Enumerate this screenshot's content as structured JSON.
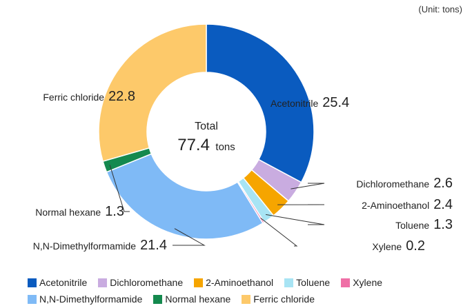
{
  "unit_label": "(Unit: tons)",
  "center": {
    "label": "Total",
    "value": "77.4",
    "unit": "tons"
  },
  "chart_data": {
    "type": "pie",
    "donut": true,
    "title": "",
    "unit": "tons",
    "total": 77.4,
    "slices": [
      {
        "name": "Acetonitrile",
        "value": 25.4,
        "color": "#0a5bbf"
      },
      {
        "name": "Dichloromethane",
        "value": 2.6,
        "color": "#c9ace0"
      },
      {
        "name": "2-Aminoethanol",
        "value": 2.4,
        "color": "#f6a500"
      },
      {
        "name": "Toluene",
        "value": 1.3,
        "color": "#a8e4f4"
      },
      {
        "name": "Xylene",
        "value": 0.2,
        "color": "#ef6fa6"
      },
      {
        "name": "N,N-Dimethylformamide",
        "value": 21.4,
        "color": "#7fbaf6"
      },
      {
        "name": "Normal hexane",
        "value": 1.3,
        "color": "#14894e"
      },
      {
        "name": "Ferric chloride",
        "value": 22.8,
        "color": "#fdc96a"
      }
    ],
    "slice_labels": [
      "25.4",
      "2.6",
      "2.4",
      "1.3",
      "0.2",
      "21.4",
      "1.3",
      "22.8"
    ],
    "legend_position": "bottom",
    "legend_rows": [
      [
        "Acetonitrile",
        "Dichloromethane",
        "2-Aminoethanol",
        "Toluene",
        "Xylene"
      ],
      [
        "N,N-Dimethylformamide",
        "Normal hexane",
        "Ferric chloride"
      ]
    ]
  }
}
